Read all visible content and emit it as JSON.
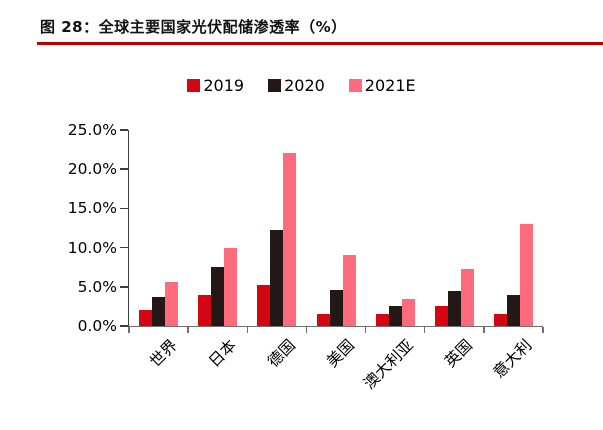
{
  "figure": {
    "title": "图 28：全球主要国家光伏配储渗透率（%）",
    "underline_color": "#c00000"
  },
  "chart_data": {
    "type": "bar",
    "title": "全球主要国家光伏配储渗透率（%）",
    "xlabel": "",
    "ylabel": "",
    "categories": [
      "世界",
      "日本",
      "德国",
      "美国",
      "澳大利亚",
      "英国",
      "意大利"
    ],
    "series": [
      {
        "name": "2019",
        "color": "#d40613",
        "values": [
          2.0,
          4.0,
          5.2,
          1.5,
          1.5,
          2.6,
          1.5
        ]
      },
      {
        "name": "2020",
        "color": "#231815",
        "values": [
          3.7,
          7.5,
          12.2,
          4.6,
          2.6,
          4.5,
          4.0
        ]
      },
      {
        "name": "2021E",
        "color": "#ff6b7d",
        "values": [
          5.6,
          10.0,
          22.1,
          9.0,
          3.5,
          7.3,
          13.0
        ]
      }
    ],
    "ylim": [
      0,
      25
    ],
    "ytick_values": [
      0,
      5,
      10,
      15,
      20,
      25
    ],
    "ytick_labels": [
      "0.0%",
      "5.0%",
      "10.0%",
      "15.0%",
      "20.0%",
      "25.0%"
    ],
    "legend_position": "top",
    "grid": false
  }
}
